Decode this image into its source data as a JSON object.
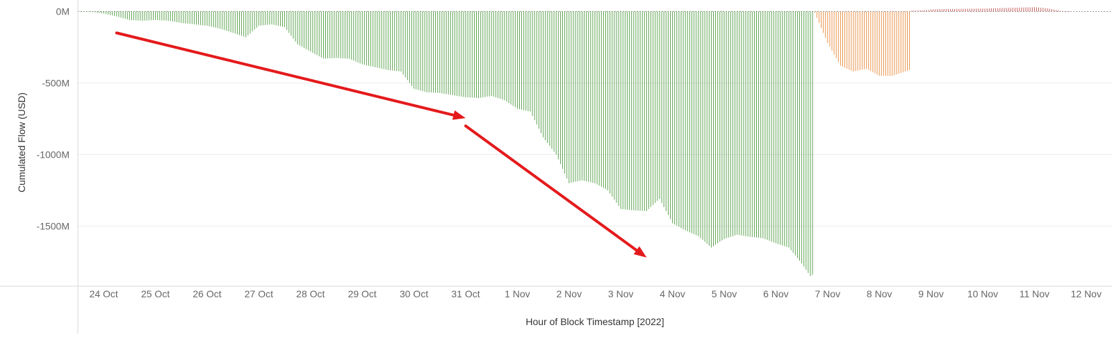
{
  "chart_data": {
    "type": "bar",
    "xlabel": "Hour of Block Timestamp [2022]",
    "ylabel": "Cumulated Flow (USD)",
    "x_ticks": [
      "24 Oct",
      "25 Oct",
      "26 Oct",
      "27 Oct",
      "28 Oct",
      "29 Oct",
      "30 Oct",
      "31 Oct",
      "1 Nov",
      "2 Nov",
      "3 Nov",
      "4 Nov",
      "5 Nov",
      "6 Nov",
      "7 Nov",
      "8 Nov",
      "9 Nov",
      "10 Nov",
      "11 Nov",
      "12 Nov"
    ],
    "y_ticks": [
      {
        "value": 0,
        "label": "0M"
      },
      {
        "value": -500,
        "label": "-500M"
      },
      {
        "value": -1000,
        "label": "-1000M"
      },
      {
        "value": -1500,
        "label": "-1500M"
      }
    ],
    "ylim": [
      -1920,
      80
    ],
    "x_range": [
      "23 Oct 12:00",
      "12 Nov 12:00"
    ],
    "units": "M USD",
    "grid": true,
    "series": [
      {
        "color": "#4e9a40",
        "points": [
          [
            "23 Oct 12:00",
            0
          ],
          [
            "23 Oct 18:00",
            -2
          ],
          [
            "24 Oct 00:00",
            -15
          ],
          [
            "24 Oct 06:00",
            -35
          ],
          [
            "24 Oct 12:00",
            -60
          ],
          [
            "24 Oct 18:00",
            -65
          ],
          [
            "25 Oct 00:00",
            -60
          ],
          [
            "25 Oct 06:00",
            -65
          ],
          [
            "25 Oct 12:00",
            -80
          ],
          [
            "25 Oct 18:00",
            -90
          ],
          [
            "26 Oct 00:00",
            -100
          ],
          [
            "26 Oct 06:00",
            -120
          ],
          [
            "26 Oct 12:00",
            -150
          ],
          [
            "26 Oct 18:00",
            -180
          ],
          [
            "27 Oct 00:00",
            -100
          ],
          [
            "27 Oct 06:00",
            -90
          ],
          [
            "27 Oct 12:00",
            -110
          ],
          [
            "27 Oct 18:00",
            -230
          ],
          [
            "28 Oct 00:00",
            -280
          ],
          [
            "28 Oct 06:00",
            -330
          ],
          [
            "28 Oct 12:00",
            -325
          ],
          [
            "28 Oct 18:00",
            -330
          ],
          [
            "29 Oct 00:00",
            -370
          ],
          [
            "29 Oct 06:00",
            -390
          ],
          [
            "29 Oct 12:00",
            -410
          ],
          [
            "29 Oct 18:00",
            -420
          ],
          [
            "30 Oct 00:00",
            -540
          ],
          [
            "30 Oct 06:00",
            -565
          ],
          [
            "30 Oct 12:00",
            -570
          ],
          [
            "30 Oct 18:00",
            -585
          ],
          [
            "31 Oct 00:00",
            -600
          ],
          [
            "31 Oct 06:00",
            -605
          ],
          [
            "31 Oct 12:00",
            -590
          ],
          [
            "31 Oct 18:00",
            -620
          ],
          [
            "1 Nov 00:00",
            -680
          ],
          [
            "1 Nov 06:00",
            -700
          ],
          [
            "1 Nov 12:00",
            -880
          ],
          [
            "1 Nov 18:00",
            -1000
          ],
          [
            "2 Nov 00:00",
            -1200
          ],
          [
            "2 Nov 06:00",
            -1180
          ],
          [
            "2 Nov 12:00",
            -1200
          ],
          [
            "2 Nov 18:00",
            -1250
          ],
          [
            "3 Nov 00:00",
            -1380
          ],
          [
            "3 Nov 06:00",
            -1390
          ],
          [
            "3 Nov 12:00",
            -1395
          ],
          [
            "3 Nov 18:00",
            -1310
          ],
          [
            "4 Nov 00:00",
            -1480
          ],
          [
            "4 Nov 06:00",
            -1530
          ],
          [
            "4 Nov 12:00",
            -1570
          ],
          [
            "4 Nov 18:00",
            -1650
          ],
          [
            "5 Nov 00:00",
            -1590
          ],
          [
            "5 Nov 06:00",
            -1560
          ],
          [
            "5 Nov 12:00",
            -1575
          ],
          [
            "5 Nov 18:00",
            -1585
          ],
          [
            "6 Nov 00:00",
            -1620
          ],
          [
            "6 Nov 06:00",
            -1650
          ],
          [
            "6 Nov 12:00",
            -1760
          ],
          [
            "6 Nov 16:00",
            -1850
          ],
          [
            "6 Nov 17:00",
            -1840
          ]
        ]
      },
      {
        "color": "#e8883a",
        "points": [
          [
            "6 Nov 18:00",
            -10
          ],
          [
            "7 Nov 00:00",
            -220
          ],
          [
            "7 Nov 06:00",
            -380
          ],
          [
            "7 Nov 12:00",
            -420
          ],
          [
            "7 Nov 18:00",
            -400
          ],
          [
            "8 Nov 00:00",
            -450
          ],
          [
            "8 Nov 06:00",
            -450
          ],
          [
            "8 Nov 12:00",
            -420
          ],
          [
            "8 Nov 14:00",
            -410
          ]
        ]
      },
      {
        "color": "#c0504d",
        "points": [
          [
            "8 Nov 15:00",
            5
          ],
          [
            "8 Nov 23:00",
            10
          ],
          [
            "9 Nov 00:00",
            15
          ],
          [
            "9 Nov 12:00",
            18
          ],
          [
            "10 Nov 00:00",
            20
          ],
          [
            "10 Nov 12:00",
            25
          ],
          [
            "11 Nov 00:00",
            30
          ],
          [
            "11 Nov 06:00",
            22
          ],
          [
            "11 Nov 12:00",
            5
          ],
          [
            "11 Nov 16:00",
            0
          ]
        ]
      }
    ],
    "annotations": [
      {
        "type": "arrow",
        "color": "#e41a1c",
        "from": [
          "24 Oct 06:00",
          -150
        ],
        "to": [
          "31 Oct 00:00",
          -745
        ]
      },
      {
        "type": "arrow",
        "color": "#e41a1c",
        "from": [
          "31 Oct 00:00",
          -800
        ],
        "to": [
          "3 Nov 12:00",
          -1720
        ]
      }
    ]
  }
}
